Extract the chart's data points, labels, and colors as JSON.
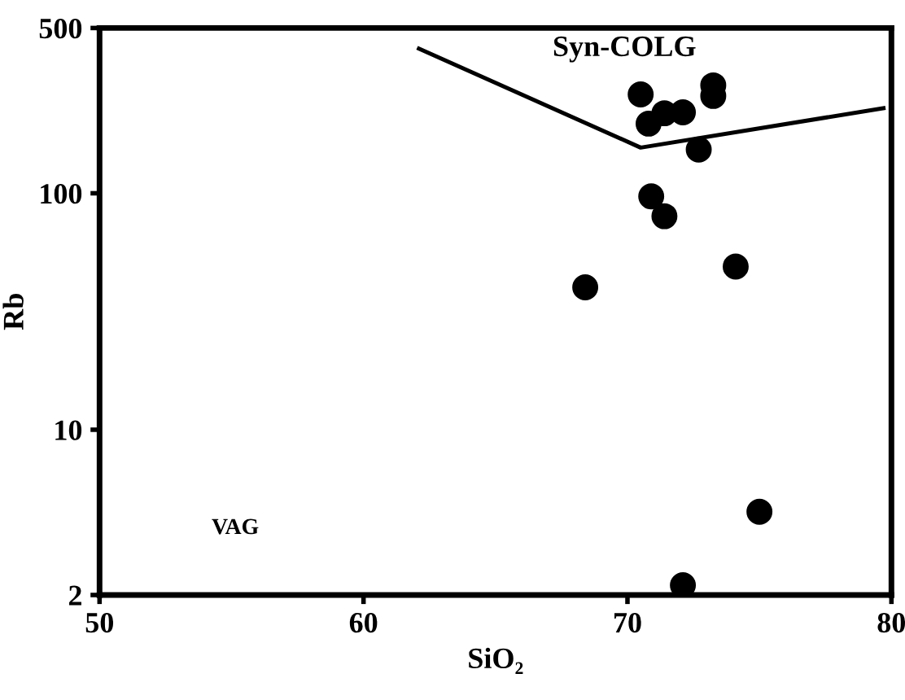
{
  "chart_data": {
    "type": "scatter",
    "xlabel": "SiO₂",
    "ylabel": "Rb",
    "log": "y",
    "xlim": [
      50,
      80
    ],
    "xticks": [
      50,
      60,
      70,
      80
    ],
    "ylim": [
      2,
      500
    ],
    "yticks": [
      2,
      10,
      100,
      500
    ],
    "grid": false,
    "legend": false,
    "series": [
      {
        "type": "line",
        "color": "#000000",
        "marker": "none",
        "line_style": "solid",
        "x": [
          62.1,
          70.5,
          79.7
        ],
        "values": [
          409,
          156,
          229
        ]
      },
      {
        "color": "#000000",
        "marker": "circle",
        "x": [
          70.5,
          70.8,
          71.4,
          72.1,
          73.25,
          73.25,
          72.7,
          70.9,
          71.4,
          74.1,
          68.4,
          75.0,
          72.1
        ],
        "values": [
          262,
          197,
          218,
          220,
          286,
          258,
          153,
          97,
          80,
          49,
          40,
          4.5,
          2.2
        ]
      }
    ],
    "annotations": [
      "Syn-COLG",
      "VAG"
    ]
  }
}
